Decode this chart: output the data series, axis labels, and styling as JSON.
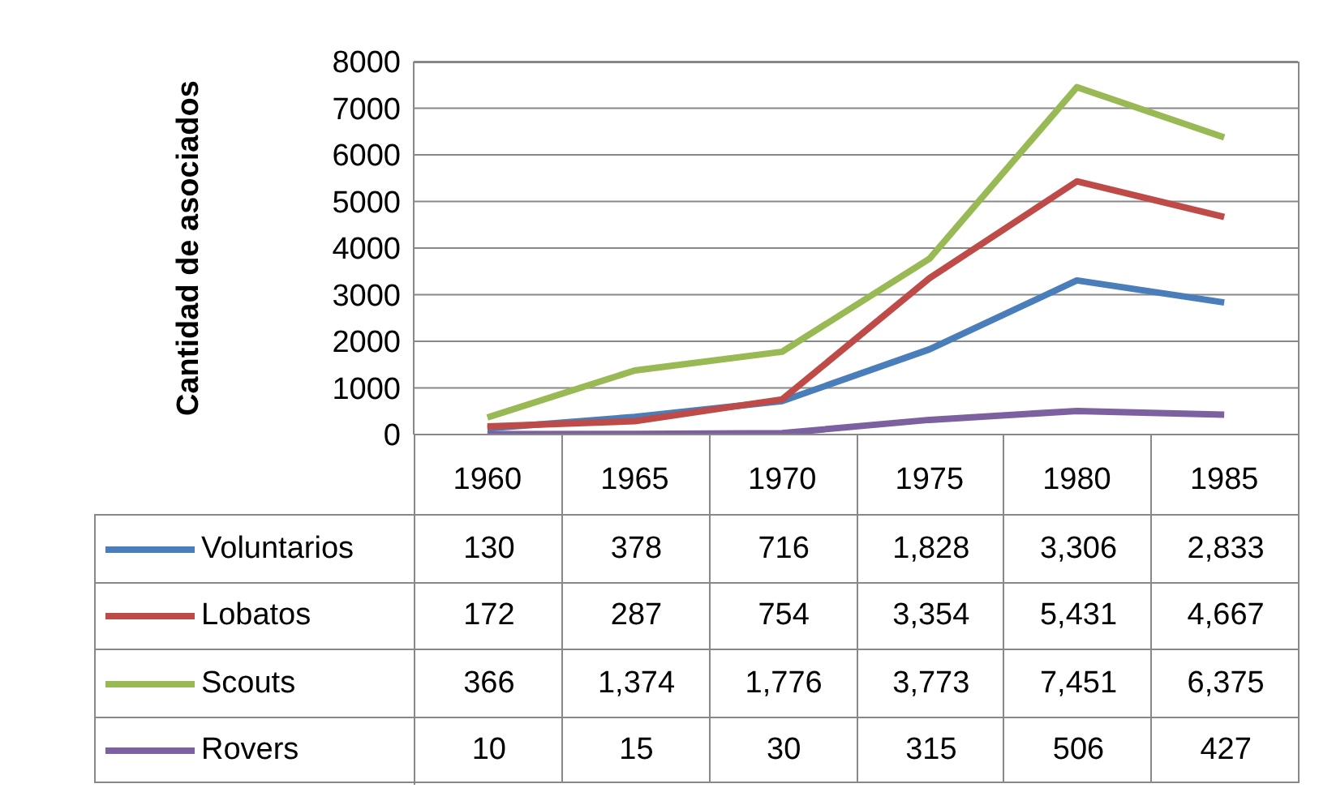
{
  "chart_data": {
    "type": "line",
    "ylabel": "Cantidad de asociados",
    "categories": [
      "1960",
      "1965",
      "1970",
      "1975",
      "1980",
      "1985"
    ],
    "ylim": [
      0,
      8000
    ],
    "yticks": [
      0,
      1000,
      2000,
      3000,
      4000,
      5000,
      6000,
      7000,
      8000
    ],
    "grid": "y",
    "legend": "bottom",
    "marker": "none",
    "series": [
      {
        "name": "Voluntarios",
        "color": "#4a7ebb",
        "values": [
          130,
          378,
          716,
          1828,
          3306,
          2833
        ],
        "value_labels": [
          "130",
          "378",
          "716",
          "1,828",
          "3,306",
          "2,833"
        ]
      },
      {
        "name": "Lobatos",
        "color": "#be4b48",
        "values": [
          172,
          287,
          754,
          3354,
          5431,
          4667
        ],
        "value_labels": [
          "172",
          "287",
          "754",
          "3,354",
          "5,431",
          "4,667"
        ]
      },
      {
        "name": "Scouts",
        "color": "#98b954",
        "values": [
          366,
          1374,
          1776,
          3773,
          7451,
          6375
        ],
        "value_labels": [
          "366",
          "1,374",
          "1,776",
          "3,773",
          "7,451",
          "6,375"
        ]
      },
      {
        "name": "Rovers",
        "color": "#7d60a0",
        "values": [
          10,
          15,
          30,
          315,
          506,
          427
        ],
        "value_labels": [
          "10",
          "15",
          "30",
          "315",
          "506",
          "427"
        ]
      }
    ]
  }
}
